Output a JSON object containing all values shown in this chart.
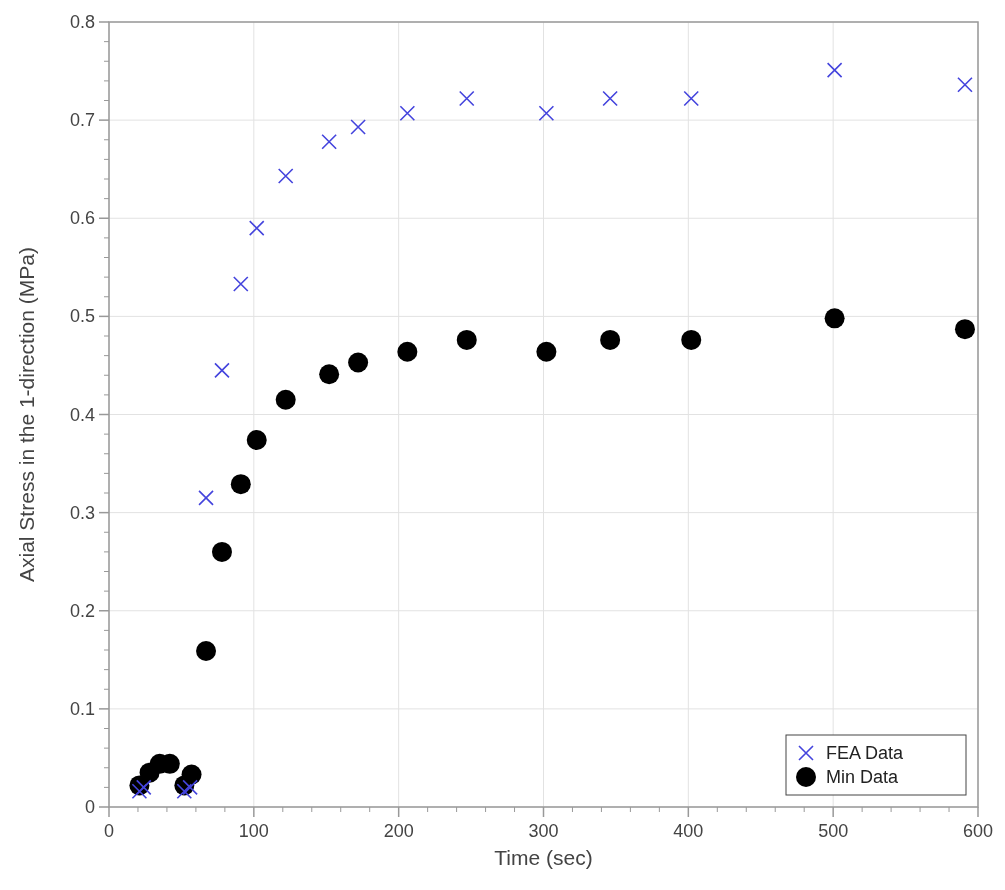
{
  "chart_data": {
    "type": "scatter",
    "xlabel": "Time (sec)",
    "ylabel": "Axial Stress in the 1-direction (MPa)",
    "xlim": [
      0,
      600
    ],
    "xticks": [
      0,
      100,
      200,
      300,
      400,
      500,
      600
    ],
    "ylim": [
      0,
      0.8
    ],
    "yticks": [
      0,
      0.1,
      0.2,
      0.3,
      0.4,
      0.5,
      0.6,
      0.7,
      0.8
    ],
    "grid": true,
    "legend": "bottom right",
    "series": [
      {
        "name": "FEA Data",
        "color": "#4444dd",
        "marker": "cross",
        "x": [
          21,
          24,
          52,
          56,
          67,
          78,
          91,
          102,
          122,
          152,
          172,
          206,
          247,
          302,
          346,
          402,
          501,
          591
        ],
        "values": [
          0.016,
          0.02,
          0.016,
          0.02,
          0.315,
          0.445,
          0.533,
          0.59,
          0.643,
          0.678,
          0.693,
          0.707,
          0.722,
          0.707,
          0.722,
          0.722,
          0.751,
          0.736
        ]
      },
      {
        "name": "Min Data",
        "color": "#000000",
        "marker": "circle",
        "x": [
          21,
          28,
          35,
          42,
          52,
          57,
          67,
          78,
          91,
          102,
          122,
          152,
          172,
          206,
          247,
          302,
          346,
          402,
          501,
          591
        ],
        "values": [
          0.022,
          0.035,
          0.044,
          0.044,
          0.022,
          0.033,
          0.159,
          0.26,
          0.329,
          0.374,
          0.415,
          0.441,
          0.453,
          0.464,
          0.476,
          0.464,
          0.476,
          0.476,
          0.498,
          0.487
        ]
      }
    ]
  }
}
